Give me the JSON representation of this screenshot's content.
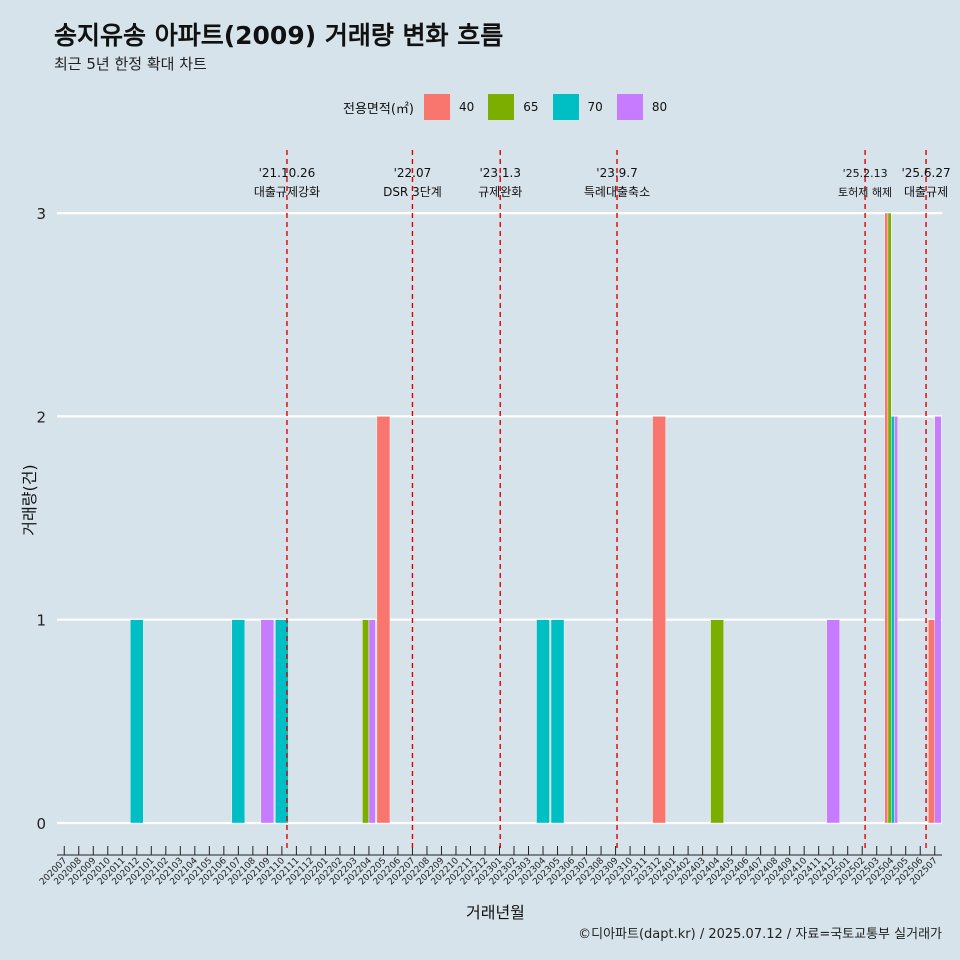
{
  "title": "송지유송 아파트(2009) 거래량 변화 흐름",
  "subtitle": "최근 5년 한정 확대 차트",
  "legend": {
    "title": "전용면적(㎡)",
    "items": [
      {
        "label": "40",
        "color": "#f8766d"
      },
      {
        "label": "65",
        "color": "#7cae00"
      },
      {
        "label": "70",
        "color": "#00bfc4"
      },
      {
        "label": "80",
        "color": "#c77cff"
      }
    ]
  },
  "footer": "©디아파트(dapt.kr) / 2025.07.12 / 자료=국토교통부 실거래가",
  "chart_data": {
    "type": "bar",
    "xlabel": "거래년월",
    "ylabel": "거래량(건)",
    "ylim": [
      0,
      3
    ],
    "yticks": [
      "0",
      "1",
      "2",
      "3"
    ],
    "grid": "horizontal",
    "legend_position": "top",
    "categories": [
      "202007",
      "202008",
      "202009",
      "202010",
      "202011",
      "202012",
      "202101",
      "202102",
      "202103",
      "202104",
      "202105",
      "202106",
      "202107",
      "202108",
      "202109",
      "202110",
      "202111",
      "202112",
      "202201",
      "202202",
      "202203",
      "202204",
      "202205",
      "202206",
      "202207",
      "202208",
      "202209",
      "202210",
      "202211",
      "202212",
      "202301",
      "202302",
      "202303",
      "202304",
      "202305",
      "202306",
      "202307",
      "202308",
      "202309",
      "202310",
      "202311",
      "202312",
      "202401",
      "202402",
      "202403",
      "202404",
      "202405",
      "202406",
      "202407",
      "202408",
      "202409",
      "202410",
      "202411",
      "202412",
      "202501",
      "202502",
      "202503",
      "202504",
      "202505",
      "202506",
      "202507"
    ],
    "series": [
      {
        "name": "40",
        "color": "#f8766d",
        "points": [
          [
            "202205",
            2
          ],
          [
            "202312",
            2
          ],
          [
            "202504",
            3
          ],
          [
            "202507",
            1
          ]
        ]
      },
      {
        "name": "65",
        "color": "#7cae00",
        "points": [
          [
            "202204",
            1
          ],
          [
            "202404",
            1
          ],
          [
            "202504",
            3
          ]
        ]
      },
      {
        "name": "70",
        "color": "#00bfc4",
        "points": [
          [
            "202012",
            1
          ],
          [
            "202107",
            1
          ],
          [
            "202110",
            1
          ],
          [
            "202304",
            1
          ],
          [
            "202305",
            1
          ],
          [
            "202504",
            2
          ]
        ]
      },
      {
        "name": "80",
        "color": "#c77cff",
        "points": [
          [
            "202109",
            1
          ],
          [
            "202204",
            1
          ],
          [
            "202412",
            1
          ],
          [
            "202504",
            2
          ],
          [
            "202507",
            2
          ]
        ]
      }
    ],
    "annotations": [
      {
        "date": "'21.10.26",
        "label": "대출규제강화",
        "month": "202110",
        "offset": 0.35
      },
      {
        "date": "'22.07",
        "label": "DSR 3단계",
        "month": "202207",
        "offset": 0.0
      },
      {
        "date": "'23.1.3",
        "label": "규제완화",
        "month": "202301",
        "offset": 0.05
      },
      {
        "date": "'23.9.7",
        "label": "특례대출축소",
        "month": "202309",
        "offset": 0.1
      },
      {
        "date": "'25.2.13",
        "label": "토허제 해제",
        "month": "202502",
        "offset": 0.2
      },
      {
        "date": "'25.6.27",
        "label": "대출규제",
        "month": "202506",
        "offset": 0.4
      }
    ]
  }
}
